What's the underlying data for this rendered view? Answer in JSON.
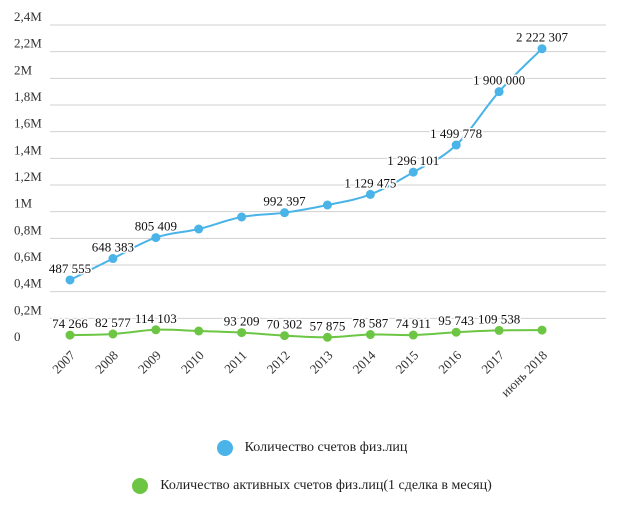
{
  "chart_data": {
    "type": "line",
    "categories": [
      "2007",
      "2008",
      "2009",
      "2010",
      "2011",
      "2012",
      "2013",
      "2014",
      "2015",
      "2016",
      "2017",
      "июнь 2018"
    ],
    "y_ticks": [
      {
        "value": 0,
        "label": "0"
      },
      {
        "value": 200000,
        "label": "0,2M"
      },
      {
        "value": 400000,
        "label": "0,4M"
      },
      {
        "value": 600000,
        "label": "0,6M"
      },
      {
        "value": 800000,
        "label": "0,8M"
      },
      {
        "value": 1000000,
        "label": "1M"
      },
      {
        "value": 1200000,
        "label": "1,2M"
      },
      {
        "value": 1400000,
        "label": "1,4M"
      },
      {
        "value": 1600000,
        "label": "1,6M"
      },
      {
        "value": 1800000,
        "label": "1,8M"
      },
      {
        "value": 2000000,
        "label": "2M"
      },
      {
        "value": 2200000,
        "label": "2,2M"
      },
      {
        "value": 2400000,
        "label": "2,4M"
      }
    ],
    "ylim": [
      0,
      2400000
    ],
    "grid": true,
    "legend_position": "bottom",
    "series": [
      {
        "name": "Количество счетов физ.лиц",
        "color": "#4ab3e8",
        "values": [
          487555,
          648383,
          805409,
          870000,
          960000,
          992397,
          1050000,
          1129475,
          1296101,
          1499778,
          1900000,
          2222307
        ],
        "labels": [
          "487 555",
          "648 383",
          "805 409",
          null,
          null,
          "992 397",
          null,
          "1 129 475",
          "1 296 101",
          "1 499 778",
          "1 900 000",
          "2 222 307"
        ]
      },
      {
        "name": "Количество активных счетов физ.лиц(1 сделка в месяц)",
        "color": "#6cc644",
        "values": [
          74266,
          82577,
          114103,
          105000,
          93209,
          70302,
          57875,
          78587,
          74911,
          95743,
          109538,
          112000
        ],
        "labels": [
          "74 266",
          "82 577",
          "114 103",
          null,
          "93 209",
          "70 302",
          "57 875",
          "78 587",
          "74 911",
          "95 743",
          "109 538",
          null
        ]
      }
    ]
  }
}
